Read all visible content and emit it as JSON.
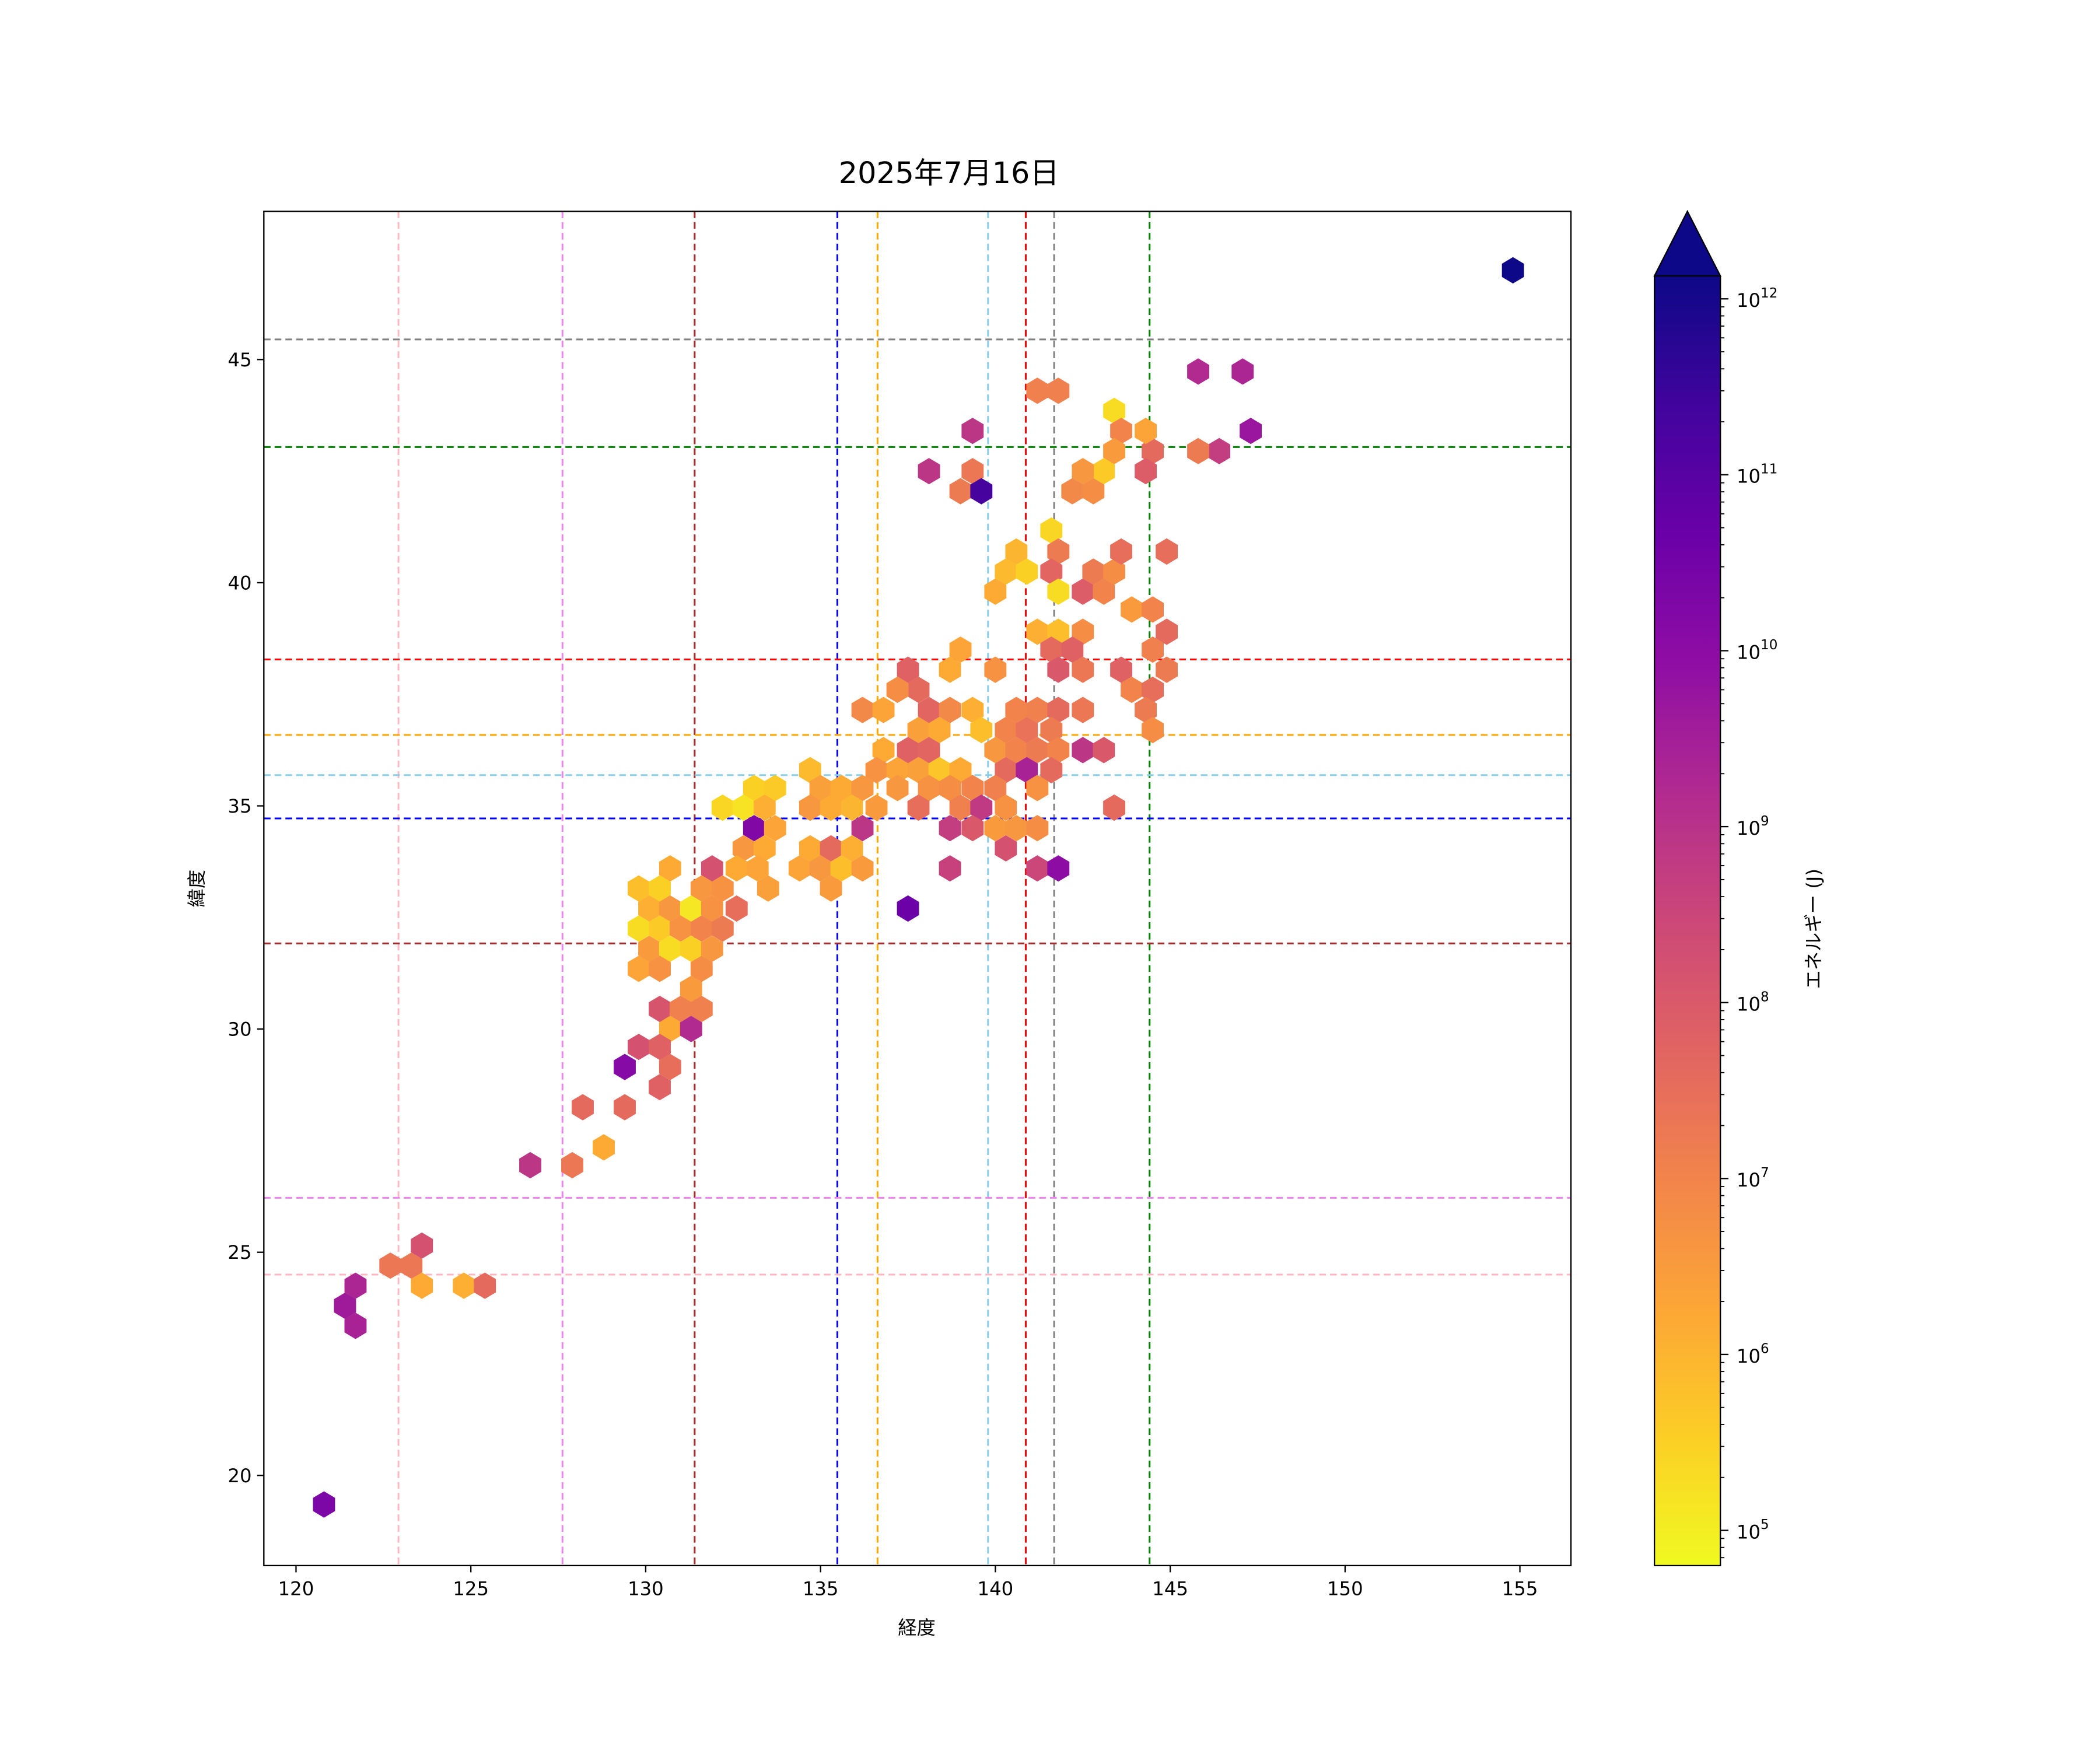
{
  "chart_data": {
    "type": "hexbin",
    "title": "2025年7月16日",
    "xlabel": "経度",
    "ylabel": "緯度",
    "xlim": [
      119.08,
      156.46
    ],
    "ylim": [
      17.98,
      48.32
    ],
    "xticks": [
      120,
      125,
      130,
      135,
      140,
      145,
      150,
      155
    ],
    "yticks": [
      20,
      25,
      30,
      35,
      40,
      45
    ],
    "colorbar": {
      "label": "エネルギー (J)",
      "scale": "log",
      "colormap": "plasma_r",
      "log10_range": [
        4.8,
        12.13
      ],
      "extend": "max",
      "ticks": [
        {
          "exp": 5,
          "label": "10",
          "sup": "5"
        },
        {
          "exp": 6,
          "label": "10",
          "sup": "6"
        },
        {
          "exp": 7,
          "label": "10",
          "sup": "7"
        },
        {
          "exp": 8,
          "label": "10",
          "sup": "8"
        },
        {
          "exp": 9,
          "label": "10",
          "sup": "9"
        },
        {
          "exp": 10,
          "label": "10",
          "sup": "10"
        },
        {
          "exp": 11,
          "label": "10",
          "sup": "11"
        },
        {
          "exp": 12,
          "label": "10",
          "sup": "12"
        }
      ]
    },
    "reference_lines": {
      "vertical": [
        {
          "lon": 122.93,
          "color": "#ffb6c1"
        },
        {
          "lon": 127.62,
          "color": "#ee82ee"
        },
        {
          "lon": 131.4,
          "color": "#a52a2a"
        },
        {
          "lon": 135.48,
          "color": "#0000ff"
        },
        {
          "lon": 136.63,
          "color": "#ffa500"
        },
        {
          "lon": 139.79,
          "color": "#87ceeb"
        },
        {
          "lon": 140.87,
          "color": "#ff0000"
        },
        {
          "lon": 141.68,
          "color": "#808080"
        },
        {
          "lon": 144.41,
          "color": "#008000"
        }
      ],
      "horizontal": [
        {
          "lat": 45.45,
          "color": "#808080"
        },
        {
          "lat": 43.04,
          "color": "#008000"
        },
        {
          "lat": 38.28,
          "color": "#ff0000"
        },
        {
          "lat": 36.59,
          "color": "#ffa500"
        },
        {
          "lat": 35.69,
          "color": "#87ceeb"
        },
        {
          "lat": 34.72,
          "color": "#0000ff"
        },
        {
          "lat": 31.92,
          "color": "#a52a2a"
        },
        {
          "lat": 26.22,
          "color": "#ee82ee"
        },
        {
          "lat": 24.5,
          "color": "#ffb6c1"
        }
      ]
    },
    "hexbins_lon_lat_log10E": [
      [
        154.8,
        47.0,
        12.2
      ],
      [
        145.8,
        44.73,
        9.2
      ],
      [
        147.07,
        44.73,
        9.3
      ],
      [
        147.3,
        43.4,
        9.7
      ],
      [
        146.4,
        42.95,
        8.7
      ],
      [
        145.8,
        42.95,
        7.2
      ],
      [
        144.5,
        42.95,
        7.6
      ],
      [
        144.3,
        42.5,
        7.9
      ],
      [
        144.3,
        43.4,
        6.3
      ],
      [
        143.4,
        43.85,
        5.3
      ],
      [
        143.6,
        43.4,
        7.0
      ],
      [
        143.4,
        42.95,
        6.5
      ],
      [
        143.1,
        42.5,
        5.6
      ],
      [
        142.5,
        42.5,
        6.6
      ],
      [
        142.2,
        42.05,
        6.9
      ],
      [
        142.8,
        42.05,
        6.8
      ],
      [
        141.2,
        44.3,
        7.1
      ],
      [
        141.8,
        44.3,
        7.1
      ],
      [
        139.35,
        43.4,
        8.9
      ],
      [
        139.35,
        42.5,
        7.3
      ],
      [
        138.1,
        42.5,
        8.9
      ],
      [
        139.0,
        42.05,
        7.2
      ],
      [
        139.6,
        42.05,
        11.3
      ],
      [
        141.6,
        41.17,
        5.4
      ],
      [
        141.8,
        40.7,
        7.2
      ],
      [
        140.6,
        40.7,
        6.0
      ],
      [
        140.3,
        40.25,
        5.9
      ],
      [
        140.9,
        40.25,
        5.5
      ],
      [
        140.0,
        39.8,
        6.2
      ],
      [
        141.6,
        40.25,
        7.7
      ],
      [
        141.8,
        39.8,
        5.3
      ],
      [
        142.5,
        39.8,
        7.9
      ],
      [
        142.8,
        40.25,
        7.2
      ],
      [
        143.1,
        39.8,
        7.0
      ],
      [
        143.4,
        40.25,
        6.8
      ],
      [
        143.6,
        40.7,
        7.5
      ],
      [
        144.9,
        40.7,
        7.5
      ],
      [
        143.9,
        39.4,
        6.5
      ],
      [
        144.5,
        39.4,
        7.0
      ],
      [
        144.9,
        38.9,
        7.6
      ],
      [
        141.2,
        38.9,
        6.1
      ],
      [
        141.8,
        38.9,
        5.8
      ],
      [
        142.5,
        38.9,
        6.8
      ],
      [
        141.6,
        38.5,
        7.6
      ],
      [
        142.2,
        38.5,
        7.8
      ],
      [
        144.5,
        38.5,
        7.1
      ],
      [
        141.8,
        38.05,
        8.0
      ],
      [
        142.5,
        38.05,
        7.3
      ],
      [
        143.6,
        38.05,
        7.8
      ],
      [
        144.9,
        38.05,
        7.2
      ],
      [
        143.9,
        37.6,
        7.0
      ],
      [
        144.5,
        37.6,
        7.5
      ],
      [
        144.3,
        37.15,
        7.2
      ],
      [
        144.5,
        36.7,
        6.8
      ],
      [
        140.0,
        38.05,
        6.7
      ],
      [
        139.0,
        38.5,
        6.3
      ],
      [
        138.7,
        38.05,
        6.2
      ],
      [
        137.5,
        38.05,
        7.8
      ],
      [
        137.8,
        37.6,
        7.6
      ],
      [
        137.2,
        37.6,
        6.8
      ],
      [
        138.1,
        37.15,
        7.7
      ],
      [
        138.7,
        37.15,
        6.9
      ],
      [
        139.35,
        37.15,
        6.1
      ],
      [
        136.2,
        37.15,
        6.9
      ],
      [
        136.8,
        37.15,
        6.3
      ],
      [
        137.8,
        36.7,
        6.4
      ],
      [
        138.4,
        36.7,
        6.2
      ],
      [
        139.6,
        36.7,
        5.8
      ],
      [
        140.6,
        37.15,
        7.0
      ],
      [
        141.2,
        37.15,
        7.1
      ],
      [
        141.8,
        37.15,
        7.6
      ],
      [
        142.5,
        37.15,
        7.3
      ],
      [
        140.3,
        36.7,
        7.0
      ],
      [
        140.9,
        36.7,
        7.4
      ],
      [
        141.6,
        36.7,
        7.2
      ],
      [
        136.8,
        36.25,
        6.2
      ],
      [
        137.5,
        36.25,
        7.8
      ],
      [
        138.1,
        36.25,
        7.7
      ],
      [
        140.0,
        36.25,
        6.6
      ],
      [
        140.6,
        36.25,
        7.0
      ],
      [
        141.2,
        36.25,
        7.2
      ],
      [
        141.8,
        36.25,
        7.0
      ],
      [
        142.5,
        36.25,
        8.9
      ],
      [
        143.1,
        36.25,
        8.0
      ],
      [
        136.6,
        35.8,
        6.7
      ],
      [
        137.2,
        35.8,
        6.3
      ],
      [
        137.8,
        35.8,
        6.4
      ],
      [
        138.4,
        35.8,
        5.7
      ],
      [
        139.0,
        35.8,
        6.2
      ],
      [
        140.3,
        35.8,
        7.6
      ],
      [
        140.9,
        35.8,
        9.4
      ],
      [
        141.6,
        35.8,
        7.6
      ],
      [
        134.7,
        35.8,
        5.9
      ],
      [
        133.1,
        35.4,
        5.5
      ],
      [
        133.7,
        35.4,
        5.6
      ],
      [
        135.0,
        35.4,
        6.4
      ],
      [
        135.6,
        35.4,
        6.2
      ],
      [
        136.2,
        35.4,
        6.6
      ],
      [
        137.2,
        35.4,
        6.6
      ],
      [
        138.1,
        35.4,
        6.7
      ],
      [
        138.7,
        35.4,
        6.8
      ],
      [
        139.35,
        35.4,
        7.0
      ],
      [
        140.0,
        35.4,
        7.1
      ],
      [
        141.2,
        35.4,
        6.7
      ],
      [
        132.2,
        34.96,
        5.4
      ],
      [
        132.8,
        34.96,
        5.2
      ],
      [
        133.4,
        34.96,
        6.1
      ],
      [
        134.7,
        34.96,
        6.6
      ],
      [
        135.3,
        34.96,
        6.2
      ],
      [
        135.9,
        34.96,
        6.0
      ],
      [
        136.6,
        34.96,
        6.5
      ],
      [
        137.8,
        34.96,
        7.5
      ],
      [
        139.0,
        34.96,
        7.1
      ],
      [
        139.6,
        34.96,
        8.8
      ],
      [
        140.3,
        34.96,
        6.7
      ],
      [
        143.4,
        34.96,
        7.6
      ],
      [
        133.1,
        34.5,
        10.2
      ],
      [
        133.7,
        34.5,
        6.3
      ],
      [
        136.2,
        34.5,
        8.9
      ],
      [
        138.7,
        34.5,
        8.7
      ],
      [
        139.35,
        34.5,
        8.0
      ],
      [
        140.0,
        34.5,
        6.5
      ],
      [
        140.6,
        34.5,
        6.6
      ],
      [
        141.2,
        34.5,
        6.8
      ],
      [
        132.8,
        34.05,
        6.6
      ],
      [
        133.4,
        34.05,
        6.2
      ],
      [
        134.7,
        34.05,
        6.2
      ],
      [
        135.3,
        34.05,
        7.6
      ],
      [
        135.9,
        34.05,
        6.1
      ],
      [
        140.3,
        34.05,
        8.2
      ],
      [
        131.9,
        33.6,
        8.2
      ],
      [
        132.6,
        33.6,
        6.2
      ],
      [
        133.2,
        33.6,
        6.3
      ],
      [
        134.4,
        33.6,
        6.3
      ],
      [
        135.0,
        33.6,
        6.6
      ],
      [
        135.6,
        33.6,
        5.8
      ],
      [
        136.2,
        33.6,
        6.5
      ],
      [
        138.7,
        33.6,
        8.6
      ],
      [
        141.2,
        33.6,
        8.5
      ],
      [
        141.8,
        33.6,
        10.0
      ],
      [
        130.7,
        33.6,
        6.2
      ],
      [
        133.5,
        33.15,
        6.4
      ],
      [
        135.3,
        33.15,
        6.5
      ],
      [
        129.8,
        33.15,
        5.8
      ],
      [
        130.4,
        33.15,
        5.5
      ],
      [
        131.6,
        33.15,
        6.6
      ],
      [
        132.2,
        33.15,
        6.7
      ],
      [
        130.1,
        32.7,
        6.1
      ],
      [
        130.7,
        32.7,
        6.6
      ],
      [
        131.3,
        32.7,
        5.1
      ],
      [
        131.9,
        32.7,
        6.7
      ],
      [
        132.6,
        32.7,
        7.5
      ],
      [
        137.5,
        32.7,
        10.6
      ],
      [
        129.8,
        32.25,
        5.3
      ],
      [
        130.4,
        32.25,
        5.6
      ],
      [
        131.0,
        32.25,
        6.7
      ],
      [
        131.6,
        32.25,
        7.0
      ],
      [
        132.2,
        32.25,
        7.2
      ],
      [
        130.1,
        31.8,
        6.5
      ],
      [
        130.7,
        31.8,
        5.3
      ],
      [
        131.3,
        31.8,
        5.5
      ],
      [
        131.9,
        31.8,
        6.6
      ],
      [
        129.8,
        31.35,
        6.3
      ],
      [
        130.4,
        31.35,
        6.7
      ],
      [
        131.6,
        31.35,
        6.8
      ],
      [
        131.3,
        30.9,
        6.5
      ],
      [
        130.4,
        30.45,
        8.1
      ],
      [
        131.0,
        30.45,
        7.1
      ],
      [
        131.6,
        30.45,
        7.1
      ],
      [
        130.7,
        30.0,
        6.2
      ],
      [
        131.3,
        30.0,
        9.2
      ],
      [
        129.8,
        29.6,
        8.2
      ],
      [
        130.4,
        29.6,
        7.8
      ],
      [
        129.4,
        29.15,
        10.1
      ],
      [
        130.7,
        29.15,
        7.5
      ],
      [
        130.4,
        28.7,
        7.8
      ],
      [
        129.4,
        28.25,
        7.6
      ],
      [
        128.2,
        28.25,
        7.6
      ],
      [
        128.8,
        27.35,
        6.2
      ],
      [
        127.9,
        26.95,
        7.3
      ],
      [
        126.7,
        26.95,
        8.9
      ],
      [
        123.6,
        25.15,
        8.2
      ],
      [
        122.7,
        24.7,
        7.3
      ],
      [
        123.3,
        24.7,
        7.3
      ],
      [
        121.7,
        24.25,
        9.3
      ],
      [
        123.6,
        24.25,
        6.2
      ],
      [
        124.8,
        24.25,
        6.1
      ],
      [
        125.4,
        24.25,
        7.6
      ],
      [
        121.4,
        23.8,
        9.6
      ],
      [
        121.7,
        23.35,
        9.4
      ],
      [
        120.8,
        19.35,
        10.3
      ]
    ]
  }
}
